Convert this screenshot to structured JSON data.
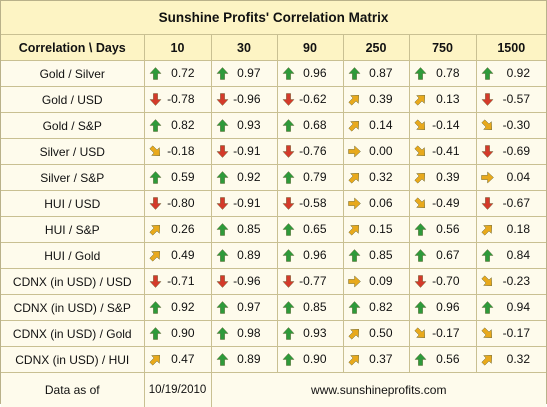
{
  "title": "Sunshine Profits' Correlation Matrix",
  "header": {
    "label": "Correlation \\ Days",
    "periods": [
      "10",
      "30",
      "90",
      "250",
      "750",
      "1500"
    ]
  },
  "arrow_colors": {
    "up": "#2e9a3a",
    "down": "#d43a2a",
    "up_right": "#e8a91c",
    "down_right": "#e8a91c",
    "right": "#e8a91c"
  },
  "rows": [
    {
      "label": "Gold / Silver",
      "cells": [
        {
          "dir": "up",
          "value": "0.72"
        },
        {
          "dir": "up",
          "value": "0.97"
        },
        {
          "dir": "up",
          "value": "0.96"
        },
        {
          "dir": "up",
          "value": "0.87"
        },
        {
          "dir": "up",
          "value": "0.78"
        },
        {
          "dir": "up",
          "value": "0.92"
        }
      ]
    },
    {
      "label": "Gold / USD",
      "cells": [
        {
          "dir": "down",
          "value": "-0.78"
        },
        {
          "dir": "down",
          "value": "-0.96"
        },
        {
          "dir": "down",
          "value": "-0.62"
        },
        {
          "dir": "up_right",
          "value": "0.39"
        },
        {
          "dir": "up_right",
          "value": "0.13"
        },
        {
          "dir": "down",
          "value": "-0.57"
        }
      ]
    },
    {
      "label": "Gold / S&P",
      "cells": [
        {
          "dir": "up",
          "value": "0.82"
        },
        {
          "dir": "up",
          "value": "0.93"
        },
        {
          "dir": "up",
          "value": "0.68"
        },
        {
          "dir": "up_right",
          "value": "0.14"
        },
        {
          "dir": "down_right",
          "value": "-0.14"
        },
        {
          "dir": "down_right",
          "value": "-0.30"
        }
      ]
    },
    {
      "label": "Silver / USD",
      "cells": [
        {
          "dir": "down_right",
          "value": "-0.18"
        },
        {
          "dir": "down",
          "value": "-0.91"
        },
        {
          "dir": "down",
          "value": "-0.76"
        },
        {
          "dir": "right",
          "value": "0.00"
        },
        {
          "dir": "down_right",
          "value": "-0.41"
        },
        {
          "dir": "down",
          "value": "-0.69"
        }
      ]
    },
    {
      "label": "Silver / S&P",
      "cells": [
        {
          "dir": "up",
          "value": "0.59"
        },
        {
          "dir": "up",
          "value": "0.92"
        },
        {
          "dir": "up",
          "value": "0.79"
        },
        {
          "dir": "up_right",
          "value": "0.32"
        },
        {
          "dir": "up_right",
          "value": "0.39"
        },
        {
          "dir": "right",
          "value": "0.04"
        }
      ]
    },
    {
      "label": "HUI / USD",
      "cells": [
        {
          "dir": "down",
          "value": "-0.80"
        },
        {
          "dir": "down",
          "value": "-0.91"
        },
        {
          "dir": "down",
          "value": "-0.58"
        },
        {
          "dir": "right",
          "value": "0.06"
        },
        {
          "dir": "down_right",
          "value": "-0.49"
        },
        {
          "dir": "down",
          "value": "-0.67"
        }
      ]
    },
    {
      "label": "HUI / S&P",
      "cells": [
        {
          "dir": "up_right",
          "value": "0.26"
        },
        {
          "dir": "up",
          "value": "0.85"
        },
        {
          "dir": "up",
          "value": "0.65"
        },
        {
          "dir": "up_right",
          "value": "0.15"
        },
        {
          "dir": "up",
          "value": "0.56"
        },
        {
          "dir": "up_right",
          "value": "0.18"
        }
      ]
    },
    {
      "label": "HUI / Gold",
      "cells": [
        {
          "dir": "up_right",
          "value": "0.49"
        },
        {
          "dir": "up",
          "value": "0.89"
        },
        {
          "dir": "up",
          "value": "0.96"
        },
        {
          "dir": "up",
          "value": "0.85"
        },
        {
          "dir": "up",
          "value": "0.67"
        },
        {
          "dir": "up",
          "value": "0.84"
        }
      ]
    },
    {
      "label": "CDNX (in USD) / USD",
      "cells": [
        {
          "dir": "down",
          "value": "-0.71"
        },
        {
          "dir": "down",
          "value": "-0.96"
        },
        {
          "dir": "down",
          "value": "-0.77"
        },
        {
          "dir": "right",
          "value": "0.09"
        },
        {
          "dir": "down",
          "value": "-0.70"
        },
        {
          "dir": "down_right",
          "value": "-0.23"
        }
      ]
    },
    {
      "label": "CDNX (in USD) / S&P",
      "cells": [
        {
          "dir": "up",
          "value": "0.92"
        },
        {
          "dir": "up",
          "value": "0.97"
        },
        {
          "dir": "up",
          "value": "0.85"
        },
        {
          "dir": "up",
          "value": "0.82"
        },
        {
          "dir": "up",
          "value": "0.96"
        },
        {
          "dir": "up",
          "value": "0.94"
        }
      ]
    },
    {
      "label": "CDNX (in USD) / Gold",
      "cells": [
        {
          "dir": "up",
          "value": "0.90"
        },
        {
          "dir": "up",
          "value": "0.98"
        },
        {
          "dir": "up",
          "value": "0.93"
        },
        {
          "dir": "up_right",
          "value": "0.50"
        },
        {
          "dir": "down_right",
          "value": "-0.17"
        },
        {
          "dir": "down_right",
          "value": "-0.17"
        }
      ]
    },
    {
      "label": "CDNX (in USD) / HUI",
      "cells": [
        {
          "dir": "up_right",
          "value": "0.47"
        },
        {
          "dir": "up",
          "value": "0.89"
        },
        {
          "dir": "up",
          "value": "0.90"
        },
        {
          "dir": "up_right",
          "value": "0.37"
        },
        {
          "dir": "up",
          "value": "0.56"
        },
        {
          "dir": "up_right",
          "value": "0.32"
        }
      ]
    }
  ],
  "footer": {
    "label": "Data as of",
    "date": "10/19/2010",
    "website": "www.sunshineprofits.com"
  }
}
